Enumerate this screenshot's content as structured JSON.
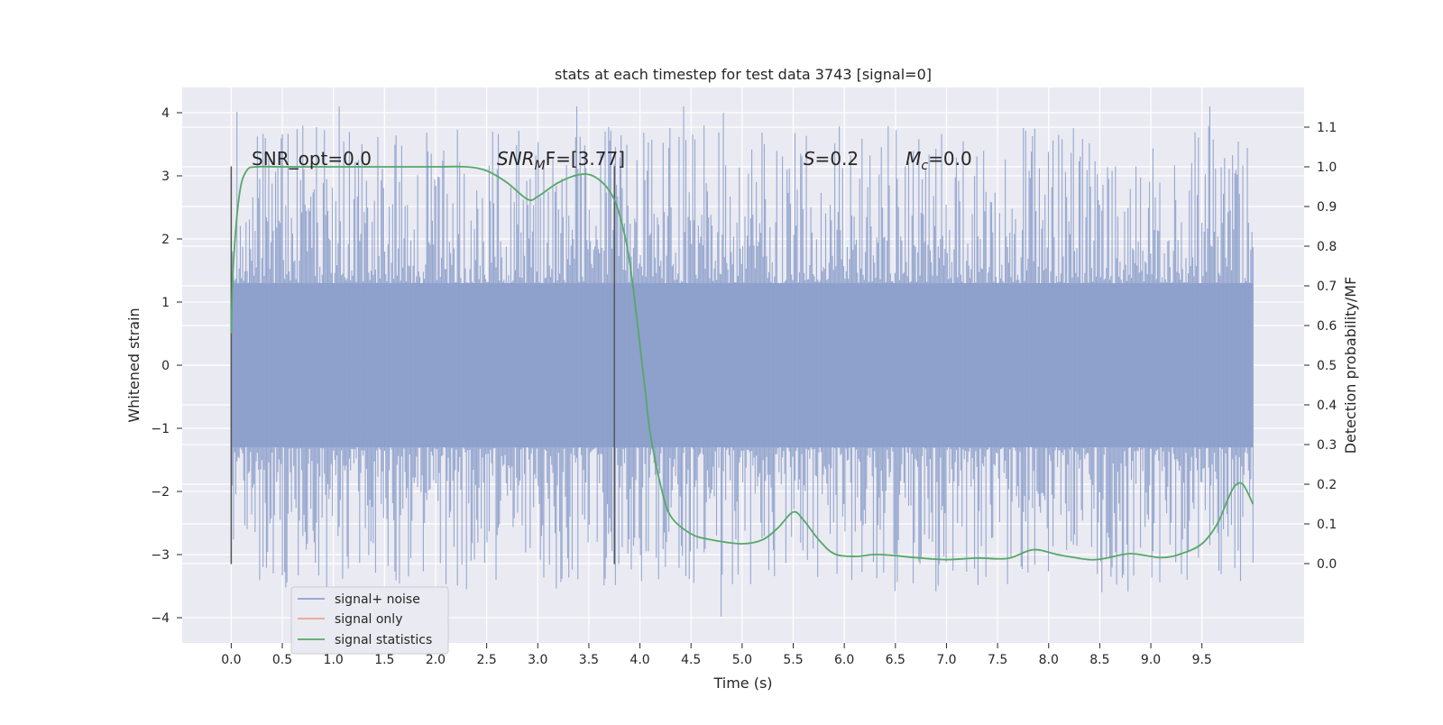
{
  "chart_data": {
    "type": "line",
    "title": "stats at each timestep for test data 3743 [signal=0]",
    "xlabel": "Time (s)",
    "ylabel_left": "Whitened strain",
    "ylabel_right": "Detection probability/MF",
    "xlim": [
      -0.48,
      10.5
    ],
    "ylim_left": [
      -4.4,
      4.4
    ],
    "ylim_right": [
      -0.2,
      1.2
    ],
    "x_ticks": [
      "0.0",
      "0.5",
      "1.0",
      "1.5",
      "2.0",
      "2.5",
      "3.0",
      "3.5",
      "4.0",
      "4.5",
      "5.0",
      "5.5",
      "6.0",
      "6.5",
      "7.0",
      "7.5",
      "8.0",
      "8.5",
      "9.0",
      "9.5"
    ],
    "y_ticks_left": [
      "−4",
      "−3",
      "−2",
      "−1",
      "0",
      "1",
      "2",
      "3",
      "4"
    ],
    "y_ticks_right": [
      "0.0",
      "0.1",
      "0.2",
      "0.3",
      "0.4",
      "0.5",
      "0.6",
      "0.7",
      "0.8",
      "0.9",
      "1.0",
      "1.1"
    ],
    "grid": true,
    "legend_position": "lower-left",
    "annotations": [
      {
        "id": "snr-opt",
        "prefix": "SNR_opt=",
        "italic": "",
        "sub": "",
        "suffix": "",
        "value": "0.0",
        "x": 0.2
      },
      {
        "id": "snr-mf",
        "prefix": "",
        "italic": "SNR",
        "sub": "M",
        "suffix": "F=",
        "value": "[3.77]",
        "x": 2.6
      },
      {
        "id": "s-val",
        "prefix": "",
        "italic": "S",
        "sub": "",
        "suffix": "=",
        "value": "0.2",
        "x": 5.6
      },
      {
        "id": "mc-val",
        "prefix": "",
        "italic": "M",
        "sub": "c",
        "suffix": "=",
        "value": "0.0",
        "x": 6.6
      }
    ],
    "vertical_markers": [
      {
        "x": 0.0,
        "y_range": [
          -3.15,
          3.15
        ]
      },
      {
        "x": 3.75,
        "y_range": [
          -3.15,
          3.15
        ]
      }
    ],
    "series": [
      {
        "name": "signal+ noise",
        "color": "#8da0cb",
        "axis": "left",
        "x_range": [
          0.0,
          10.0
        ],
        "typical_band": [
          -1.3,
          1.3
        ],
        "peak_range": [
          -4.0,
          4.1
        ]
      },
      {
        "name": "signal only",
        "color": "#e5a78c",
        "axis": "left",
        "x": [],
        "y": []
      },
      {
        "name": "signal statistics",
        "color": "#55a868",
        "axis": "right",
        "x": [
          0.0,
          0.02,
          0.08,
          0.15,
          0.25,
          0.5,
          1.0,
          1.5,
          2.0,
          2.3,
          2.5,
          2.7,
          2.9,
          3.0,
          3.2,
          3.4,
          3.55,
          3.7,
          3.8,
          3.9,
          4.0,
          4.05,
          4.1,
          4.2,
          4.3,
          4.5,
          4.7,
          5.0,
          5.2,
          5.35,
          5.5,
          5.6,
          5.75,
          5.9,
          6.1,
          6.3,
          6.5,
          6.7,
          7.0,
          7.3,
          7.6,
          7.85,
          8.1,
          8.4,
          8.55,
          8.8,
          9.1,
          9.3,
          9.5,
          9.65,
          9.75,
          9.82,
          9.9,
          10.0
        ],
        "y": [
          0.58,
          0.75,
          0.93,
          0.99,
          1.0,
          1.0,
          1.0,
          1.0,
          1.0,
          1.0,
          0.99,
          0.96,
          0.918,
          0.925,
          0.96,
          0.98,
          0.976,
          0.94,
          0.88,
          0.76,
          0.55,
          0.44,
          0.33,
          0.2,
          0.12,
          0.075,
          0.06,
          0.05,
          0.06,
          0.09,
          0.13,
          0.11,
          0.06,
          0.025,
          0.018,
          0.023,
          0.02,
          0.015,
          0.01,
          0.014,
          0.013,
          0.035,
          0.022,
          0.01,
          0.013,
          0.025,
          0.015,
          0.025,
          0.05,
          0.1,
          0.16,
          0.195,
          0.2,
          0.15
        ]
      }
    ]
  }
}
